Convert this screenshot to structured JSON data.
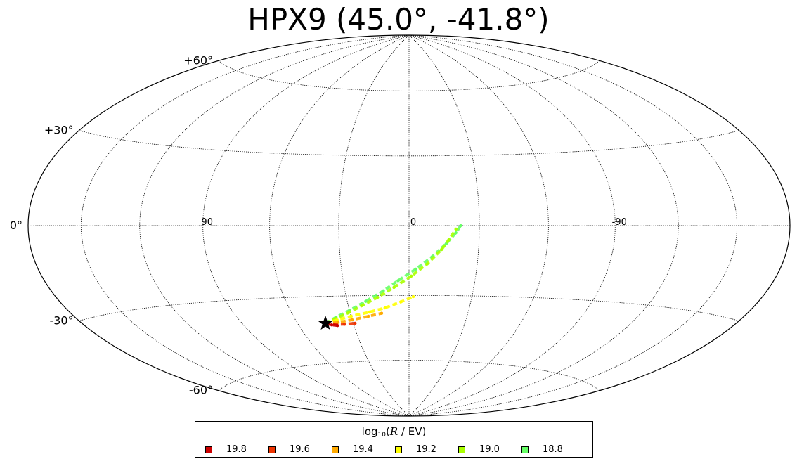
{
  "chart_data": {
    "type": "scatter",
    "projection": "hammer-aitoff",
    "title": "HPX9 (45.0°, -41.8°)",
    "xlabel": "",
    "ylabel": "",
    "longitude_range": [
      -180,
      180
    ],
    "latitude_range": [
      -90,
      90
    ],
    "grid": true,
    "lat_tick_labels": [
      {
        "lat": 60,
        "text": "+60°"
      },
      {
        "lat": 30,
        "text": "+30°"
      },
      {
        "lat": 0,
        "text": "0°"
      },
      {
        "lat": -30,
        "text": "-30°"
      },
      {
        "lat": -60,
        "text": "-60°"
      }
    ],
    "lon_tick_labels": [
      {
        "lon": 90,
        "text": "90"
      },
      {
        "lon": 0,
        "text": "0"
      },
      {
        "lon": -90,
        "text": "-90"
      }
    ],
    "source": {
      "lon": 45.0,
      "lat": -41.8,
      "marker": "star"
    },
    "series": [
      {
        "rigidity": "19.8",
        "color": "#cc0000",
        "points": [
          [
            45.0,
            -41.8
          ],
          [
            42.0,
            -42.6
          ],
          [
            39.0,
            -43.0
          ]
        ]
      },
      {
        "rigidity": "19.6",
        "color": "#ee3300",
        "points": [
          [
            45.0,
            -41.8
          ],
          [
            40.0,
            -42.4
          ],
          [
            35.0,
            -42.5
          ],
          [
            29.0,
            -42.2
          ]
        ]
      },
      {
        "rigidity": "19.4",
        "color": "#ffaa00",
        "points": [
          [
            45.0,
            -41.8
          ],
          [
            38.0,
            -41.6
          ],
          [
            30.0,
            -40.6
          ],
          [
            21.0,
            -39.2
          ],
          [
            14.0,
            -37.9
          ]
        ]
      },
      {
        "rigidity": "19.2",
        "color": "#ffff00",
        "points": [
          [
            45.0,
            -41.8
          ],
          [
            38.0,
            -40.5
          ],
          [
            30.0,
            -39.0
          ],
          [
            20.0,
            -37.3
          ],
          [
            12.0,
            -35.5
          ],
          [
            4.0,
            -32.9
          ],
          [
            -2.0,
            -30.6
          ]
        ]
      },
      {
        "rigidity": "19.0",
        "color": "#aaff00",
        "points": [
          [
            45.0,
            -41.8
          ],
          [
            39.0,
            -40.0
          ],
          [
            31.0,
            -37.5
          ],
          [
            23.0,
            -34.3
          ],
          [
            15.0,
            -30.8
          ],
          [
            7.0,
            -26.5
          ],
          [
            -1.0,
            -21.6
          ],
          [
            -8.0,
            -16.3
          ],
          [
            -14.0,
            -10.2
          ],
          [
            -17.0,
            -6.0
          ],
          [
            -20.0,
            -1.5
          ]
        ]
      },
      {
        "rigidity": "18.8",
        "color": "#66ff66",
        "points": [
          [
            45.0,
            -41.8
          ],
          [
            38.0,
            -39.3
          ],
          [
            30.0,
            -36.4
          ],
          [
            21.0,
            -32.5
          ],
          [
            12.0,
            -28.0
          ],
          [
            5.0,
            -23.6
          ],
          [
            -3.0,
            -18.6
          ],
          [
            -10.0,
            -13.3
          ],
          [
            -16.0,
            -7.6
          ],
          [
            -20.0,
            -3.0
          ],
          [
            -22.0,
            0.0
          ]
        ]
      }
    ]
  },
  "legend": {
    "title_prefix": "log",
    "title_sub": "10",
    "title_var": "R",
    "title_suffix": " / EV)",
    "title_open": "(",
    "items": [
      {
        "label": "19.8",
        "color": "#cc0000"
      },
      {
        "label": "19.6",
        "color": "#ee3300"
      },
      {
        "label": "19.4",
        "color": "#ffaa00"
      },
      {
        "label": "19.2",
        "color": "#ffff00"
      },
      {
        "label": "19.0",
        "color": "#aaff00"
      },
      {
        "label": "18.8",
        "color": "#66ff66"
      }
    ]
  }
}
